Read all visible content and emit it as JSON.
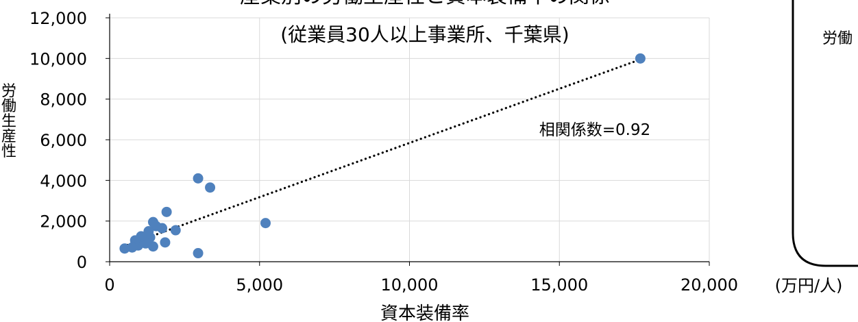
{
  "chart_data": {
    "type": "scatter",
    "title_line1_partial": "産業別の労働生産性と資本装備率の関係",
    "subtitle": "(従業員30人以上事業所、千葉県)",
    "xlabel": "資本装備率",
    "x_unit": "(万円/人)",
    "ylabel": "労働生産性",
    "xlim": [
      0,
      20000
    ],
    "ylim": [
      0,
      12000
    ],
    "x_ticks": [
      "0",
      "5,000",
      "10,000",
      "15,000",
      "20,000"
    ],
    "y_ticks": [
      "0",
      "2,000",
      "4,000",
      "6,000",
      "8,000",
      "10,000",
      "12,000"
    ],
    "annotation": "相関係数=0.92",
    "grid": true,
    "marker_color": "#4f81bd",
    "trendline": {
      "style": "dotted",
      "from": [
        450,
        750
      ],
      "to": [
        17700,
        9950
      ]
    },
    "points": [
      {
        "x": 17700,
        "y": 10000
      },
      {
        "x": 5200,
        "y": 1900
      },
      {
        "x": 3350,
        "y": 3650
      },
      {
        "x": 2950,
        "y": 420
      },
      {
        "x": 2950,
        "y": 4100
      },
      {
        "x": 2200,
        "y": 1550
      },
      {
        "x": 1900,
        "y": 2450
      },
      {
        "x": 1850,
        "y": 950
      },
      {
        "x": 1750,
        "y": 1650
      },
      {
        "x": 1550,
        "y": 1750
      },
      {
        "x": 1450,
        "y": 1950
      },
      {
        "x": 1450,
        "y": 750
      },
      {
        "x": 1350,
        "y": 1200
      },
      {
        "x": 1300,
        "y": 1500
      },
      {
        "x": 1200,
        "y": 900
      },
      {
        "x": 1050,
        "y": 1250
      },
      {
        "x": 950,
        "y": 800
      },
      {
        "x": 850,
        "y": 1050
      },
      {
        "x": 750,
        "y": 700
      },
      {
        "x": 500,
        "y": 650
      }
    ]
  },
  "side_panel": {
    "label_fragment": "労働"
  }
}
